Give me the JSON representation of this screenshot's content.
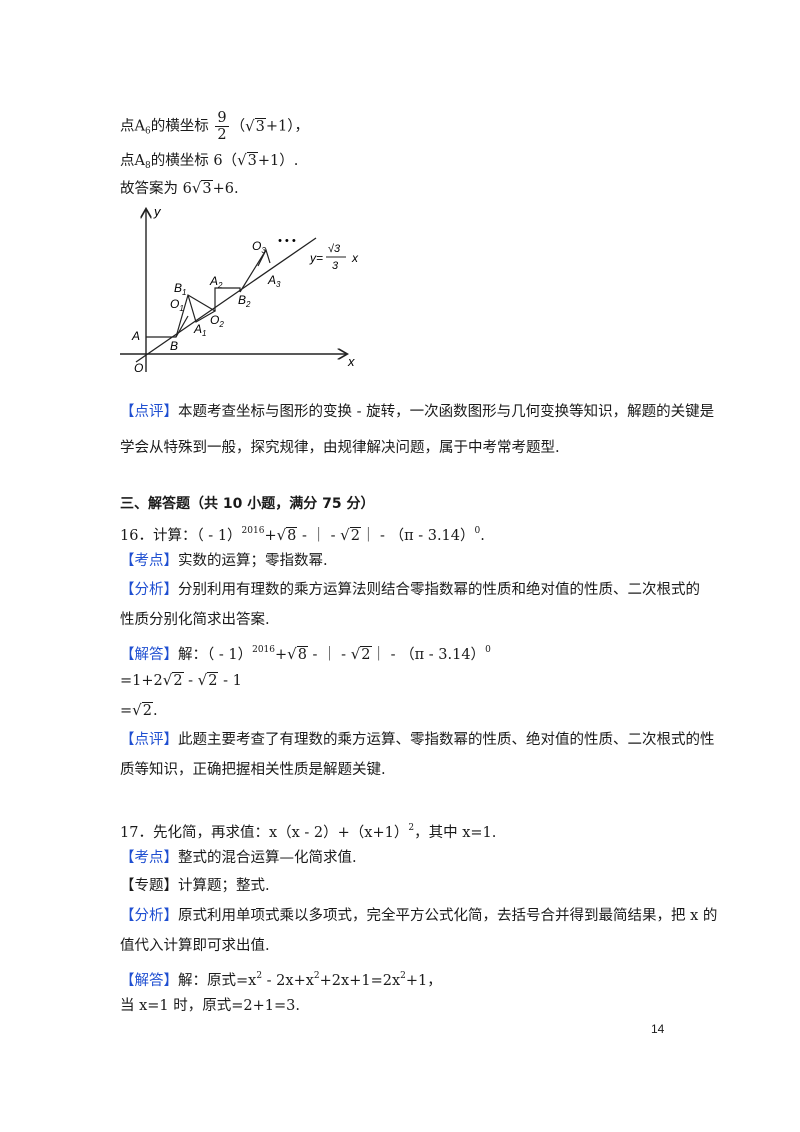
{
  "lines": {
    "a6_pre": "点A",
    "a6_sub": "6",
    "a6_mid": "的横坐标",
    "a6_num": "9",
    "a6_den": "2",
    "a6_paren_open": "（",
    "a6_rad": "3",
    "a6_post": "+1），",
    "a8_pre": "点A",
    "a8_sub": "8",
    "a8_mid": "的横坐标 6（",
    "a8_rad": "3",
    "a8_post": "+1）.",
    "ans_pre": "故答案为 6",
    "ans_rad": "3",
    "ans_post": "+6.",
    "review1_tag": "【点评】",
    "review1_text": "本题考查坐标与图形的变换 - 旋转，一次函数图形与几何变换等知识，解题的关键是",
    "review1_text2": "学会从特殊到一般，探究规律，由规律解决问题，属于中考常考题型.",
    "section3": "三、解答题（共 10 小题，满分 75 分）",
    "q16_pre": "16．计算：（ - 1）",
    "q16_exp": "2016",
    "q16_plus": "+",
    "q16_rad1": "8",
    "q16_mid": " - ｜ - ",
    "q16_rad2": "2",
    "q16_post": "｜ - （π - 3.14）",
    "q16_exp0": "0",
    "q16_end": ".",
    "kd16_tag": "【考点】",
    "kd16_text": "实数的运算；零指数幂.",
    "fx16_tag": "【分析】",
    "fx16_text": "分别利用有理数的乘方运算法则结合零指数幂的性质和绝对值的性质、二次根式的",
    "fx16_text2": "性质分别化简求出答案.",
    "jd16_tag": "【解答】",
    "jd16_pre": "解：（ - 1）",
    "jd16_exp": "2016",
    "jd16_plus": "+",
    "jd16_rad1": "8",
    "jd16_mid": " - ｜ - ",
    "jd16_rad2": "2",
    "jd16_post": "｜ - （π - 3.14）",
    "jd16_exp0": "0",
    "step1_pre": "=1+2",
    "step1_rad1": "2",
    "step1_mid": " - ",
    "step1_rad2": "2",
    "step1_post": " - 1",
    "step2_pre": "=",
    "step2_rad": "2",
    "step2_post": ".",
    "review2_tag": "【点评】",
    "review2_text": "此题主要考查了有理数的乘方运算、零指数幂的性质、绝对值的性质、二次根式的性",
    "review2_text2": "质等知识，正确把握相关性质是解题关键.",
    "q17_pre": "17．先化简，再求值：x（x - 2）+（x+1）",
    "q17_exp": "2",
    "q17_post": "，其中 x=1.",
    "kd17_tag": "【考点】",
    "kd17_text": "整式的混合运算—化简求值.",
    "zt17_tag": "【专题】",
    "zt17_text": "计算题；整式.",
    "fx17_tag": "【分析】",
    "fx17_text": "原式利用单项式乘以多项式，完全平方公式化简，去括号合并得到最简结果，把 x 的",
    "fx17_text2": "值代入计算即可求出值.",
    "jd17_tag": "【解答】",
    "jd17_pre": "解：原式=x",
    "jd17_e1": "2",
    "jd17_m1": " - 2x+x",
    "jd17_e2": "2",
    "jd17_m2": "+2x+1=2x",
    "jd17_e3": "2",
    "jd17_post": "+1，",
    "final17": "当 x=1 时，原式=2+1=3."
  },
  "figure": {
    "y_axis": "y",
    "x_axis": "x",
    "origin": "O",
    "A": "A",
    "B": "B",
    "B1": "B",
    "B1_sub": "1",
    "O1": "O",
    "O1_sub": "1",
    "A1": "A",
    "A1_sub": "1",
    "A2": "A",
    "A2_sub": "2",
    "O2": "O",
    "O2_sub": "2",
    "B2": "B",
    "B2_sub": "2",
    "O3": "O",
    "O3_sub": "3",
    "A3": "A",
    "A3_sub": "3",
    "eq_y": "y=",
    "eq_num": "√3",
    "eq_den": "3",
    "eq_x": "x",
    "dots": "• • •"
  },
  "page_number": "14"
}
